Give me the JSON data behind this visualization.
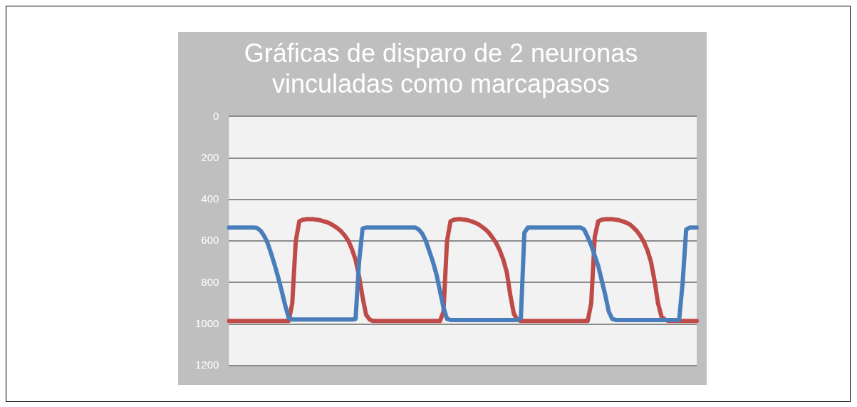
{
  "chart_data": {
    "type": "line",
    "title": "Gráficas de disparo de 2 neuronas vinculadas como marcapasos",
    "categories": [
      null,
      null,
      null,
      null,
      null,
      null,
      null,
      null,
      null,
      null,
      null,
      null,
      null,
      null,
      null,
      null,
      null,
      null,
      null,
      null,
      null,
      null,
      null,
      null,
      null,
      null,
      null,
      null,
      null,
      null,
      null,
      null,
      null,
      null,
      null,
      null,
      null,
      null,
      null,
      null,
      null,
      null,
      null,
      null,
      null,
      null,
      null,
      null,
      null,
      null,
      null,
      null,
      null,
      null,
      null,
      null,
      null,
      null,
      null,
      null,
      null,
      null,
      null,
      null,
      null,
      null,
      null,
      null,
      null,
      null,
      null,
      null,
      null,
      null,
      null,
      null,
      null,
      null,
      null,
      null,
      null,
      null,
      null,
      null,
      null,
      null,
      null,
      null,
      null,
      null,
      null,
      null,
      null,
      null,
      null,
      null,
      null,
      null,
      null,
      null,
      null,
      null,
      null,
      null,
      null,
      null,
      null,
      null,
      null,
      null,
      null,
      null,
      null,
      null,
      null,
      null,
      null,
      null,
      null,
      null,
      null,
      null,
      null,
      null,
      null,
      null,
      null,
      null,
      null,
      null,
      null,
      null,
      null,
      null
    ],
    "series": [
      {
        "color": "#4a7ebb",
        "values": [
          535,
          535,
          535,
          535,
          535,
          535,
          535,
          535,
          537,
          550,
          575,
          610,
          660,
          715,
          775,
          840,
          910,
          970,
          978,
          978,
          978,
          978,
          978,
          978,
          978,
          978,
          978,
          978,
          978,
          978,
          978,
          978,
          978,
          978,
          978,
          978,
          975,
          700,
          540,
          535,
          535,
          535,
          535,
          535,
          535,
          535,
          535,
          535,
          535,
          535,
          535,
          535,
          535,
          535,
          545,
          565,
          600,
          650,
          700,
          760,
          840,
          920,
          975,
          980,
          980,
          980,
          980,
          980,
          980,
          980,
          980,
          980,
          980,
          980,
          980,
          980,
          980,
          980,
          980,
          980,
          980,
          980,
          980,
          970,
          560,
          535,
          535,
          535,
          535,
          535,
          535,
          535,
          535,
          535,
          535,
          535,
          535,
          535,
          535,
          535,
          535,
          545,
          580,
          620,
          670,
          720,
          790,
          860,
          940,
          975,
          980,
          980,
          980,
          980,
          980,
          980,
          980,
          980,
          980,
          980,
          980,
          980,
          980,
          980,
          980,
          980,
          980,
          980,
          980,
          800,
          545,
          535,
          535,
          535
        ]
      },
      {
        "color": "#be4b48",
        "values": [
          985,
          985,
          985,
          985,
          985,
          985,
          985,
          985,
          985,
          985,
          985,
          985,
          985,
          985,
          985,
          985,
          985,
          985,
          900,
          600,
          505,
          497,
          495,
          495,
          495,
          497,
          500,
          505,
          510,
          518,
          528,
          540,
          555,
          575,
          600,
          640,
          690,
          770,
          870,
          955,
          978,
          985,
          985,
          985,
          985,
          985,
          985,
          985,
          985,
          985,
          985,
          985,
          985,
          985,
          985,
          985,
          985,
          985,
          985,
          985,
          985,
          940,
          600,
          505,
          497,
          495,
          495,
          497,
          500,
          505,
          512,
          520,
          532,
          545,
          562,
          585,
          610,
          645,
          690,
          750,
          860,
          950,
          978,
          985,
          985,
          985,
          985,
          985,
          985,
          985,
          985,
          985,
          985,
          985,
          985,
          985,
          985,
          985,
          985,
          985,
          985,
          985,
          985,
          900,
          580,
          505,
          497,
          495,
          495,
          495,
          497,
          500,
          505,
          512,
          520,
          535,
          552,
          575,
          605,
          645,
          700,
          790,
          900,
          965,
          978,
          985,
          985,
          985,
          985,
          985,
          985,
          985,
          985,
          985
        ]
      }
    ],
    "ylim": [
      1200,
      0
    ],
    "yticks": [
      0,
      200,
      400,
      600,
      800,
      1000,
      1200
    ],
    "grid": "y",
    "tick_labels": "y",
    "legend": false,
    "marker": "none",
    "line_style": "solid"
  }
}
